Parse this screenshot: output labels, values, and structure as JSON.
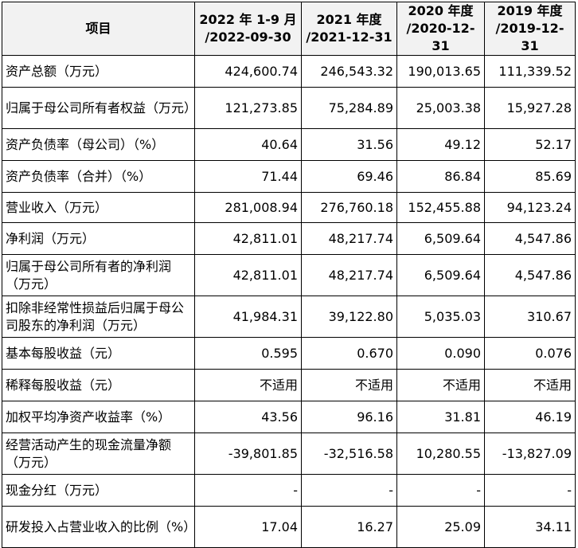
{
  "table": {
    "header": {
      "item": "项目",
      "columns": [
        {
          "period": "2022 年 1-9 月",
          "date": "/2022-09-30"
        },
        {
          "period": "2021 年度",
          "date": "/2021-12-31"
        },
        {
          "period": "2020 年度",
          "date": "/2020-12-31"
        },
        {
          "period": "2019 年度",
          "date": "/2019-12-31"
        }
      ]
    },
    "rows": [
      [
        "资产总额（万元）",
        "424,600.74",
        "246,543.32",
        "190,013.65",
        "111,339.52"
      ],
      [
        "归属于母公司所有者权益（万元）",
        "121,273.85",
        "75,284.89",
        "25,003.38",
        "15,927.28"
      ],
      [
        "资产负债率（母公司）（%）",
        "40.64",
        "31.56",
        "49.12",
        "52.17"
      ],
      [
        "资产负债率（合并）（%）",
        "71.44",
        "69.46",
        "86.84",
        "85.69"
      ],
      [
        "营业收入（万元）",
        "281,008.94",
        "276,760.18",
        "152,455.88",
        "94,123.24"
      ],
      [
        "净利润（万元）",
        "42,811.01",
        "48,217.74",
        "6,509.64",
        "4,547.86"
      ],
      [
        "归属于母公司所有者的净利润（万元）",
        "42,811.01",
        "48,217.74",
        "6,509.64",
        "4,547.86"
      ],
      [
        "扣除非经常性损益后归属于母公司股东的净利润（万元）",
        "41,984.31",
        "39,122.80",
        "5,035.03",
        "310.67"
      ],
      [
        "基本每股收益（元）",
        "0.595",
        "0.670",
        "0.090",
        "0.076"
      ],
      [
        "稀释每股收益（元）",
        "不适用",
        "不适用",
        "不适用",
        "不适用"
      ],
      [
        "加权平均净资产收益率（%）",
        "43.56",
        "96.16",
        "31.81",
        "46.19"
      ],
      [
        "经营活动产生的现金流量净额（万元）",
        "-39,801.85",
        "-32,516.58",
        "10,280.55",
        "-13,827.09"
      ],
      [
        "现金分红（万元）",
        "-",
        "-",
        "-",
        "-"
      ],
      [
        "研发投入占营业收入的比例（%）",
        "17.04",
        "16.27",
        "25.09",
        "34.11"
      ]
    ]
  }
}
